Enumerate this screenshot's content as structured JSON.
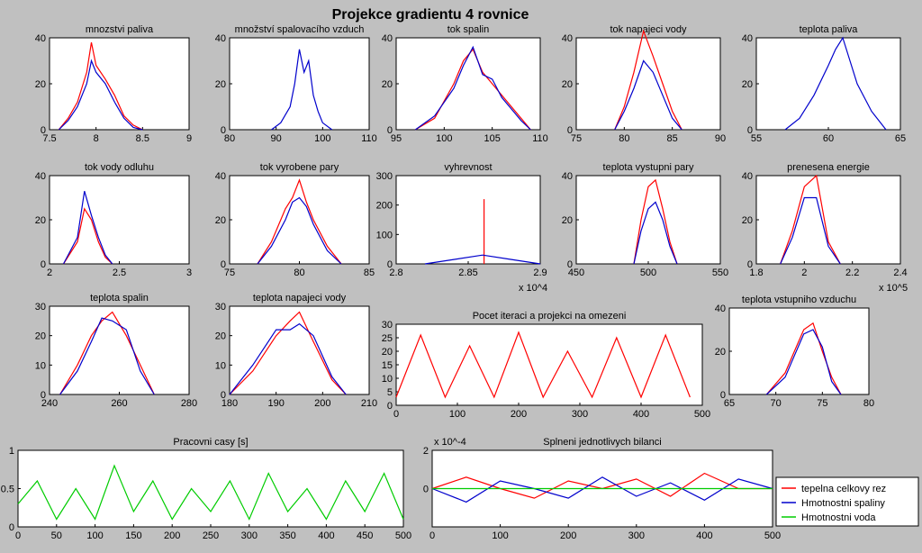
{
  "title": "Projekce gradientu 4 rovnice",
  "colors": {
    "red": "#ff0000",
    "blue": "#0000cc",
    "green": "#00cc00",
    "figure_bg": "#c0c0c0",
    "axes_bg": "#ffffff"
  },
  "chart_data": [
    {
      "id": "p1",
      "type": "line",
      "title": "mnozstvi paliva",
      "xlim": [
        7.5,
        9
      ],
      "ylim": [
        0,
        40
      ],
      "xticks": [
        "7.5",
        "8",
        "8.5",
        "9"
      ],
      "yticks": [
        "0",
        "20",
        "40"
      ],
      "series": [
        {
          "color": "red",
          "x": [
            7.6,
            7.7,
            7.8,
            7.9,
            7.95,
            8.0,
            8.1,
            8.2,
            8.3,
            8.4,
            8.5
          ],
          "values": [
            0,
            5,
            12,
            25,
            38,
            28,
            22,
            15,
            6,
            2,
            0
          ]
        },
        {
          "color": "blue",
          "x": [
            7.6,
            7.7,
            7.8,
            7.9,
            7.95,
            8.0,
            8.1,
            8.2,
            8.3,
            8.4,
            8.5
          ],
          "values": [
            0,
            4,
            10,
            20,
            30,
            25,
            20,
            12,
            5,
            1,
            0
          ]
        }
      ]
    },
    {
      "id": "p2",
      "type": "line",
      "title": "množství spalovacího vzduch",
      "xlim": [
        80,
        110
      ],
      "ylim": [
        0,
        40
      ],
      "xticks": [
        "80",
        "90",
        "100",
        "110"
      ],
      "yticks": [
        "0",
        "20",
        "40"
      ],
      "series": [
        {
          "color": "blue",
          "x": [
            89,
            91,
            93,
            94,
            95,
            96,
            97,
            98,
            99,
            100,
            102
          ],
          "values": [
            0,
            3,
            10,
            20,
            35,
            25,
            30,
            15,
            8,
            3,
            0
          ]
        }
      ]
    },
    {
      "id": "p3",
      "type": "line",
      "title": "tok spalin",
      "xlim": [
        95,
        110
      ],
      "ylim": [
        0,
        40
      ],
      "xticks": [
        "95",
        "100",
        "105",
        "110"
      ],
      "yticks": [
        "0",
        "20",
        "40"
      ],
      "series": [
        {
          "color": "red",
          "x": [
            97,
            99,
            101,
            102,
            103,
            104,
            105,
            106,
            107,
            108,
            109
          ],
          "values": [
            0,
            5,
            20,
            30,
            35,
            25,
            20,
            15,
            10,
            5,
            0
          ]
        },
        {
          "color": "blue",
          "x": [
            97,
            99,
            101,
            102,
            103,
            104,
            105,
            106,
            107,
            108,
            109
          ],
          "values": [
            0,
            6,
            18,
            28,
            36,
            24,
            22,
            14,
            9,
            4,
            0
          ]
        }
      ]
    },
    {
      "id": "p4",
      "type": "line",
      "title": "tok napajeci vody",
      "xlim": [
        75,
        90
      ],
      "ylim": [
        0,
        40
      ],
      "xticks": [
        "75",
        "80",
        "85",
        "90"
      ],
      "yticks": [
        "0",
        "20",
        "40"
      ],
      "series": [
        {
          "color": "red",
          "x": [
            79,
            80,
            81,
            82,
            83,
            84,
            85,
            86
          ],
          "values": [
            0,
            10,
            25,
            43,
            32,
            20,
            8,
            0
          ]
        },
        {
          "color": "blue",
          "x": [
            79,
            80,
            81,
            82,
            83,
            84,
            85,
            86
          ],
          "values": [
            0,
            8,
            18,
            30,
            25,
            15,
            5,
            0
          ]
        }
      ]
    },
    {
      "id": "p5",
      "type": "line",
      "title": "teplota paliva",
      "xlim": [
        55,
        65
      ],
      "ylim": [
        0,
        40
      ],
      "xticks": [
        "55",
        "60",
        "65"
      ],
      "yticks": [
        "0",
        "20",
        "40"
      ],
      "series": [
        {
          "color": "blue",
          "x": [
            57,
            58,
            59,
            60,
            60.5,
            61,
            61.5,
            62,
            63,
            64
          ],
          "values": [
            0,
            5,
            15,
            28,
            35,
            40,
            30,
            20,
            8,
            0
          ]
        }
      ]
    },
    {
      "id": "p6",
      "type": "line",
      "title": "tok vody odluhu",
      "xlim": [
        2,
        3
      ],
      "ylim": [
        0,
        40
      ],
      "xticks": [
        "2",
        "2.5",
        "3"
      ],
      "yticks": [
        "0",
        "20",
        "40"
      ],
      "series": [
        {
          "color": "red",
          "x": [
            2.1,
            2.2,
            2.25,
            2.3,
            2.35,
            2.4,
            2.45
          ],
          "values": [
            0,
            10,
            25,
            20,
            10,
            3,
            0
          ]
        },
        {
          "color": "blue",
          "x": [
            2.1,
            2.2,
            2.25,
            2.3,
            2.35,
            2.4,
            2.45
          ],
          "values": [
            0,
            12,
            33,
            22,
            12,
            4,
            0
          ]
        }
      ]
    },
    {
      "id": "p7",
      "type": "line",
      "title": "tok vyrobene pary",
      "xlim": [
        75,
        85
      ],
      "ylim": [
        0,
        40
      ],
      "xticks": [
        "75",
        "80",
        "85"
      ],
      "yticks": [
        "0",
        "20",
        "40"
      ],
      "series": [
        {
          "color": "red",
          "x": [
            77,
            78,
            79,
            79.5,
            80,
            80.5,
            81,
            82,
            83
          ],
          "values": [
            0,
            10,
            25,
            30,
            38,
            28,
            20,
            8,
            0
          ]
        },
        {
          "color": "blue",
          "x": [
            77,
            78,
            79,
            79.5,
            80,
            80.5,
            81,
            82,
            83
          ],
          "values": [
            0,
            8,
            20,
            28,
            30,
            26,
            18,
            6,
            0
          ]
        }
      ]
    },
    {
      "id": "p8",
      "type": "line",
      "title": "vyhrevnost",
      "xlim": [
        2.8,
        2.9
      ],
      "ylim": [
        0,
        300
      ],
      "xticks": [
        "2.8",
        "2.85",
        "2.9"
      ],
      "yticks": [
        "0",
        "100",
        "200",
        "300"
      ],
      "exponent": "x 10^4",
      "series": [
        {
          "color": "red",
          "x": [
            2.861,
            2.861
          ],
          "values": [
            0,
            220
          ]
        },
        {
          "color": "blue",
          "x": [
            2.82,
            2.84,
            2.86,
            2.88,
            2.9
          ],
          "values": [
            0,
            15,
            30,
            15,
            0
          ]
        }
      ]
    },
    {
      "id": "p9",
      "type": "line",
      "title": "teplota vystupni pary",
      "xlim": [
        450,
        550
      ],
      "ylim": [
        0,
        40
      ],
      "xticks": [
        "450",
        "500",
        "550"
      ],
      "yticks": [
        "0",
        "20",
        "40"
      ],
      "series": [
        {
          "color": "red",
          "x": [
            490,
            495,
            500,
            505,
            510,
            515,
            520
          ],
          "values": [
            0,
            20,
            35,
            38,
            25,
            10,
            0
          ]
        },
        {
          "color": "blue",
          "x": [
            490,
            495,
            500,
            505,
            510,
            515,
            520
          ],
          "values": [
            0,
            15,
            25,
            28,
            20,
            8,
            0
          ]
        }
      ]
    },
    {
      "id": "p10",
      "type": "line",
      "title": "prenesena energie",
      "xlim": [
        1.8,
        2.4
      ],
      "ylim": [
        0,
        40
      ],
      "xticks": [
        "1.8",
        "2",
        "2.2",
        "2.4"
      ],
      "yticks": [
        "0",
        "20",
        "40"
      ],
      "exponent": "x 10^5",
      "series": [
        {
          "color": "red",
          "x": [
            1.9,
            1.95,
            2.0,
            2.05,
            2.1,
            2.15
          ],
          "values": [
            0,
            15,
            35,
            40,
            10,
            0
          ]
        },
        {
          "color": "blue",
          "x": [
            1.9,
            1.95,
            2.0,
            2.05,
            2.1,
            2.15
          ],
          "values": [
            0,
            12,
            30,
            30,
            8,
            0
          ]
        }
      ]
    },
    {
      "id": "p11",
      "type": "line",
      "title": "teplota spalin",
      "xlim": [
        240,
        280
      ],
      "ylim": [
        0,
        30
      ],
      "xticks": [
        "240",
        "260",
        "280"
      ],
      "yticks": [
        "0",
        "10",
        "20",
        "30"
      ],
      "series": [
        {
          "color": "red",
          "x": [
            243,
            248,
            252,
            255,
            258,
            262,
            266,
            270
          ],
          "values": [
            0,
            10,
            20,
            25,
            28,
            20,
            10,
            0
          ]
        },
        {
          "color": "blue",
          "x": [
            243,
            248,
            252,
            255,
            258,
            262,
            266,
            270
          ],
          "values": [
            0,
            8,
            18,
            26,
            25,
            22,
            8,
            0
          ]
        }
      ]
    },
    {
      "id": "p12",
      "type": "line",
      "title": "teplota napajeci vody",
      "xlim": [
        180,
        210
      ],
      "ylim": [
        0,
        30
      ],
      "xticks": [
        "180",
        "190",
        "200",
        "210"
      ],
      "yticks": [
        "0",
        "10",
        "20",
        "30"
      ],
      "series": [
        {
          "color": "red",
          "x": [
            180,
            185,
            190,
            193,
            195,
            198,
            202,
            205
          ],
          "values": [
            0,
            8,
            20,
            25,
            28,
            18,
            5,
            0
          ]
        },
        {
          "color": "blue",
          "x": [
            180,
            185,
            190,
            193,
            195,
            198,
            202,
            205
          ],
          "values": [
            0,
            10,
            22,
            22,
            24,
            20,
            6,
            0
          ]
        }
      ]
    },
    {
      "id": "p13",
      "type": "line",
      "title": "Pocet iteraci a projekci na omezeni",
      "xlim": [
        0,
        500
      ],
      "ylim": [
        0,
        30
      ],
      "xticks": [
        "0",
        "100",
        "200",
        "300",
        "400",
        "500"
      ],
      "yticks": [
        "0",
        "5",
        "10",
        "15",
        "20",
        "25",
        "30"
      ],
      "series": [
        {
          "color": "red",
          "x": [
            0,
            40,
            80,
            120,
            160,
            200,
            240,
            280,
            320,
            360,
            400,
            440,
            480
          ],
          "values": [
            3,
            26,
            3,
            22,
            3,
            27,
            3,
            20,
            3,
            25,
            3,
            26,
            3
          ]
        }
      ]
    },
    {
      "id": "p14",
      "type": "line",
      "title": "teplota vstupniho vzduchu",
      "xlim": [
        65,
        80
      ],
      "ylim": [
        0,
        40
      ],
      "xticks": [
        "65",
        "70",
        "75",
        "80"
      ],
      "yticks": [
        "0",
        "20",
        "40"
      ],
      "series": [
        {
          "color": "red",
          "x": [
            69,
            71,
            72,
            73,
            74,
            75,
            76,
            77
          ],
          "values": [
            0,
            10,
            20,
            30,
            33,
            20,
            8,
            0
          ]
        },
        {
          "color": "blue",
          "x": [
            69,
            71,
            72,
            73,
            74,
            75,
            76,
            77
          ],
          "values": [
            0,
            8,
            18,
            28,
            30,
            22,
            6,
            0
          ]
        }
      ]
    },
    {
      "id": "p15",
      "type": "line",
      "title": "Pracovni casy [s]",
      "xlim": [
        0,
        500
      ],
      "ylim": [
        0,
        1
      ],
      "xticks": [
        "0",
        "50",
        "100",
        "150",
        "200",
        "250",
        "300",
        "350",
        "400",
        "450",
        "500"
      ],
      "yticks": [
        "0",
        "0.5",
        "1"
      ],
      "series": [
        {
          "color": "green",
          "x": [
            0,
            25,
            50,
            75,
            100,
            125,
            150,
            175,
            200,
            225,
            250,
            275,
            300,
            325,
            350,
            375,
            400,
            425,
            450,
            475,
            500
          ],
          "values": [
            0.3,
            0.6,
            0.1,
            0.5,
            0.1,
            0.8,
            0.2,
            0.6,
            0.1,
            0.5,
            0.2,
            0.6,
            0.1,
            0.7,
            0.2,
            0.5,
            0.1,
            0.6,
            0.2,
            0.7,
            0.1
          ]
        }
      ]
    },
    {
      "id": "p16",
      "type": "line",
      "title": "Splneni jednotlivych bilanci",
      "xlim": [
        0,
        500
      ],
      "ylim": [
        -2,
        2
      ],
      "xticks": [
        "0",
        "100",
        "200",
        "300",
        "400",
        "500"
      ],
      "yticks": [
        "0",
        "2"
      ],
      "exponent": "x 10^-4",
      "series": [
        {
          "name": "tepelna celkovy rez",
          "color": "red",
          "x": [
            0,
            50,
            100,
            150,
            200,
            250,
            300,
            350,
            400,
            450,
            500
          ],
          "values": [
            0,
            0.6,
            0,
            -0.5,
            0.4,
            0,
            0.5,
            -0.4,
            0.8,
            0,
            0
          ]
        },
        {
          "name": "Hmotnostni spaliny",
          "color": "blue",
          "x": [
            0,
            50,
            100,
            150,
            200,
            250,
            300,
            350,
            400,
            450,
            500
          ],
          "values": [
            0,
            -0.7,
            0.4,
            0,
            -0.5,
            0.6,
            -0.4,
            0.3,
            -0.6,
            0.5,
            0
          ]
        },
        {
          "name": "Hmotnostni voda",
          "color": "green",
          "x": [
            0,
            500
          ],
          "values": [
            0,
            0
          ]
        }
      ]
    }
  ]
}
